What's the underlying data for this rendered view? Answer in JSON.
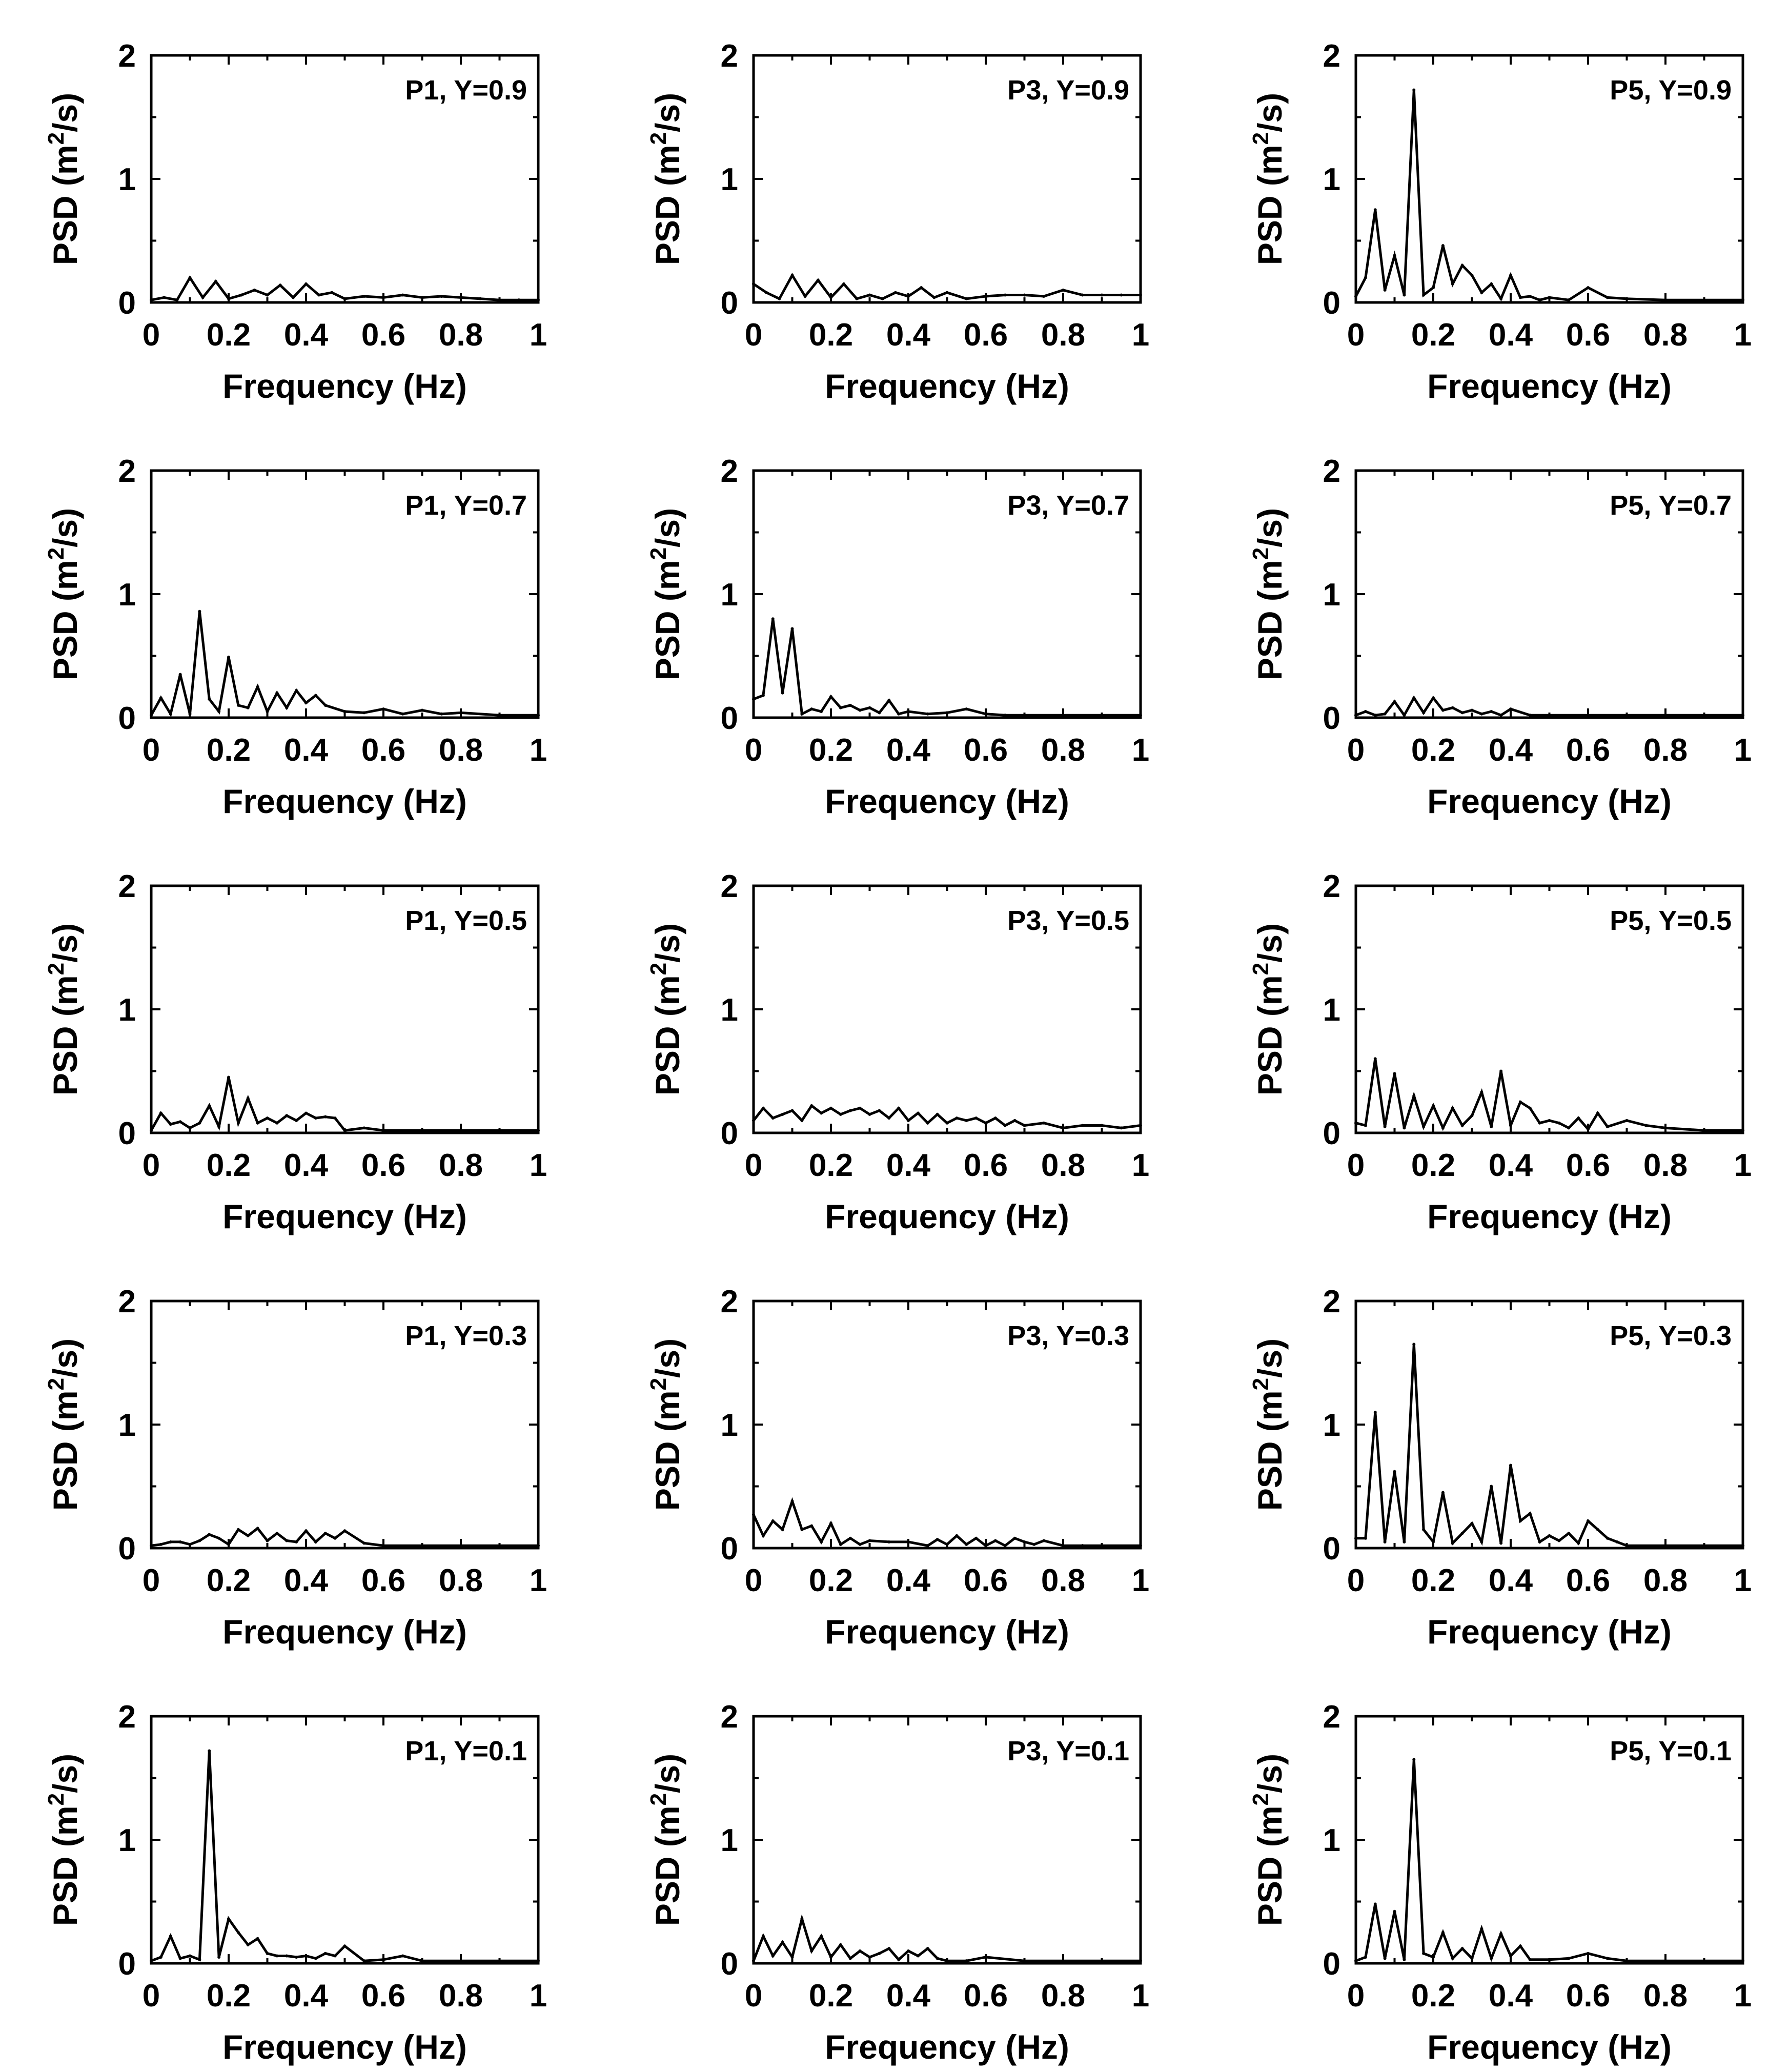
{
  "figure": {
    "xlabel": "Frequency (Hz)",
    "ylabel_main": "PSD (m",
    "ylabel_sup": "2",
    "ylabel_end": "/s)",
    "x_ticks": [
      "0",
      "0.2",
      "0.4",
      "0.6",
      "0.8",
      "1"
    ],
    "y_ticks": [
      "0",
      "1",
      "2"
    ]
  },
  "chart_data": [
    {
      "type": "line",
      "title": "P1, Y=0.9",
      "xlabel": "Frequency (Hz)",
      "ylabel": "PSD (m²/s)",
      "xlim": [
        0,
        1
      ],
      "ylim": [
        0,
        2
      ],
      "x": [
        0,
        0.0333,
        0.0667,
        0.1,
        0.1333,
        0.1667,
        0.2,
        0.2333,
        0.2667,
        0.3,
        0.3333,
        0.3667,
        0.4,
        0.4333,
        0.4667,
        0.5,
        0.55,
        0.6,
        0.65,
        0.7,
        0.75,
        0.8,
        0.85,
        0.9,
        0.95,
        1
      ],
      "values": [
        0.02,
        0.04,
        0.02,
        0.2,
        0.04,
        0.17,
        0.03,
        0.06,
        0.1,
        0.06,
        0.14,
        0.04,
        0.15,
        0.06,
        0.08,
        0.03,
        0.05,
        0.04,
        0.06,
        0.04,
        0.05,
        0.04,
        0.03,
        0.02,
        0.02,
        0.02
      ]
    },
    {
      "type": "line",
      "title": "P3, Y=0.9",
      "xlabel": "Frequency (Hz)",
      "ylabel": "PSD (m²/s)",
      "xlim": [
        0,
        1
      ],
      "ylim": [
        0,
        2
      ],
      "x": [
        0,
        0.0333,
        0.0667,
        0.1,
        0.1333,
        0.1667,
        0.2,
        0.2333,
        0.2667,
        0.3,
        0.3333,
        0.3667,
        0.4,
        0.4333,
        0.4667,
        0.5,
        0.55,
        0.6,
        0.65,
        0.7,
        0.75,
        0.8,
        0.85,
        0.9,
        0.95,
        1
      ],
      "values": [
        0.15,
        0.08,
        0.03,
        0.22,
        0.05,
        0.18,
        0.04,
        0.15,
        0.03,
        0.06,
        0.03,
        0.08,
        0.05,
        0.12,
        0.04,
        0.08,
        0.03,
        0.05,
        0.06,
        0.06,
        0.05,
        0.1,
        0.06,
        0.06,
        0.06,
        0.06
      ]
    },
    {
      "type": "line",
      "title": "P5, Y=0.9",
      "xlabel": "Frequency (Hz)",
      "ylabel": "PSD (m²/s)",
      "xlim": [
        0,
        1
      ],
      "ylim": [
        0,
        2
      ],
      "x": [
        0,
        0.025,
        0.05,
        0.075,
        0.1,
        0.125,
        0.15,
        0.175,
        0.2,
        0.225,
        0.25,
        0.275,
        0.3,
        0.325,
        0.35,
        0.375,
        0.4,
        0.425,
        0.45,
        0.475,
        0.5,
        0.55,
        0.6,
        0.65,
        0.7,
        0.8,
        0.9,
        1
      ],
      "values": [
        0.05,
        0.2,
        0.75,
        0.1,
        0.38,
        0.06,
        1.72,
        0.06,
        0.12,
        0.46,
        0.15,
        0.3,
        0.22,
        0.08,
        0.15,
        0.03,
        0.22,
        0.04,
        0.05,
        0.02,
        0.04,
        0.02,
        0.12,
        0.04,
        0.03,
        0.02,
        0.02,
        0.02
      ]
    },
    {
      "type": "line",
      "title": "P1, Y=0.7",
      "xlabel": "Frequency (Hz)",
      "ylabel": "PSD (m²/s)",
      "xlim": [
        0,
        1
      ],
      "ylim": [
        0,
        2
      ],
      "x": [
        0,
        0.025,
        0.05,
        0.075,
        0.1,
        0.125,
        0.15,
        0.175,
        0.2,
        0.225,
        0.25,
        0.275,
        0.3,
        0.325,
        0.35,
        0.375,
        0.4,
        0.425,
        0.45,
        0.5,
        0.55,
        0.6,
        0.65,
        0.7,
        0.75,
        0.8,
        0.9,
        1
      ],
      "values": [
        0.02,
        0.16,
        0.03,
        0.35,
        0.03,
        0.86,
        0.15,
        0.05,
        0.49,
        0.1,
        0.08,
        0.25,
        0.05,
        0.2,
        0.08,
        0.22,
        0.12,
        0.18,
        0.1,
        0.05,
        0.04,
        0.07,
        0.03,
        0.06,
        0.03,
        0.04,
        0.02,
        0.02
      ]
    },
    {
      "type": "line",
      "title": "P3, Y=0.7",
      "xlabel": "Frequency (Hz)",
      "ylabel": "PSD (m²/s)",
      "xlim": [
        0,
        1
      ],
      "ylim": [
        0,
        2
      ],
      "x": [
        0,
        0.025,
        0.05,
        0.075,
        0.1,
        0.125,
        0.15,
        0.175,
        0.2,
        0.225,
        0.25,
        0.275,
        0.3,
        0.325,
        0.35,
        0.375,
        0.4,
        0.45,
        0.5,
        0.55,
        0.6,
        0.65,
        0.7,
        0.8,
        0.9,
        1
      ],
      "values": [
        0.15,
        0.18,
        0.8,
        0.2,
        0.72,
        0.03,
        0.07,
        0.05,
        0.17,
        0.08,
        0.1,
        0.06,
        0.08,
        0.04,
        0.14,
        0.03,
        0.05,
        0.03,
        0.04,
        0.07,
        0.03,
        0.02,
        0.02,
        0.02,
        0.02,
        0.02
      ]
    },
    {
      "type": "line",
      "title": "P5, Y=0.7",
      "xlabel": "Frequency (Hz)",
      "ylabel": "PSD (m²/s)",
      "xlim": [
        0,
        1
      ],
      "ylim": [
        0,
        2
      ],
      "x": [
        0,
        0.025,
        0.05,
        0.075,
        0.1,
        0.125,
        0.15,
        0.175,
        0.2,
        0.225,
        0.25,
        0.275,
        0.3,
        0.325,
        0.35,
        0.375,
        0.4,
        0.45,
        0.5,
        0.6,
        0.7,
        0.8,
        0.9,
        1
      ],
      "values": [
        0.02,
        0.05,
        0.02,
        0.03,
        0.13,
        0.02,
        0.16,
        0.04,
        0.16,
        0.06,
        0.08,
        0.04,
        0.06,
        0.03,
        0.05,
        0.02,
        0.07,
        0.02,
        0.02,
        0.02,
        0.02,
        0.02,
        0.02,
        0.02
      ]
    },
    {
      "type": "line",
      "title": "P1, Y=0.5",
      "xlabel": "Frequency (Hz)",
      "ylabel": "PSD (m²/s)",
      "xlim": [
        0,
        1
      ],
      "ylim": [
        0,
        2
      ],
      "x": [
        0,
        0.025,
        0.05,
        0.075,
        0.1,
        0.125,
        0.15,
        0.175,
        0.2,
        0.225,
        0.25,
        0.275,
        0.3,
        0.325,
        0.35,
        0.375,
        0.4,
        0.425,
        0.45,
        0.475,
        0.5,
        0.55,
        0.6,
        0.7,
        0.8,
        0.9,
        1
      ],
      "values": [
        0.02,
        0.16,
        0.07,
        0.09,
        0.04,
        0.08,
        0.22,
        0.05,
        0.45,
        0.08,
        0.28,
        0.08,
        0.12,
        0.08,
        0.14,
        0.1,
        0.16,
        0.12,
        0.13,
        0.12,
        0.02,
        0.04,
        0.02,
        0.02,
        0.02,
        0.02,
        0.02
      ]
    },
    {
      "type": "line",
      "title": "P3, Y=0.5",
      "xlabel": "Frequency (Hz)",
      "ylabel": "PSD (m²/s)",
      "xlim": [
        0,
        1
      ],
      "ylim": [
        0,
        2
      ],
      "x": [
        0,
        0.025,
        0.05,
        0.075,
        0.1,
        0.125,
        0.15,
        0.175,
        0.2,
        0.225,
        0.25,
        0.275,
        0.3,
        0.325,
        0.35,
        0.375,
        0.4,
        0.425,
        0.45,
        0.475,
        0.5,
        0.525,
        0.55,
        0.575,
        0.6,
        0.625,
        0.65,
        0.675,
        0.7,
        0.75,
        0.8,
        0.85,
        0.9,
        0.95,
        1
      ],
      "values": [
        0.1,
        0.2,
        0.12,
        0.15,
        0.18,
        0.1,
        0.22,
        0.16,
        0.2,
        0.15,
        0.18,
        0.2,
        0.15,
        0.18,
        0.12,
        0.2,
        0.1,
        0.16,
        0.08,
        0.15,
        0.08,
        0.12,
        0.1,
        0.12,
        0.08,
        0.12,
        0.06,
        0.1,
        0.06,
        0.08,
        0.04,
        0.06,
        0.06,
        0.04,
        0.06
      ]
    },
    {
      "type": "line",
      "title": "P5, Y=0.5",
      "xlabel": "Frequency (Hz)",
      "ylabel": "PSD (m²/s)",
      "xlim": [
        0,
        1
      ],
      "ylim": [
        0,
        2
      ],
      "x": [
        0,
        0.025,
        0.05,
        0.075,
        0.1,
        0.125,
        0.15,
        0.175,
        0.2,
        0.225,
        0.25,
        0.275,
        0.3,
        0.325,
        0.35,
        0.375,
        0.4,
        0.425,
        0.45,
        0.475,
        0.5,
        0.525,
        0.55,
        0.575,
        0.6,
        0.625,
        0.65,
        0.7,
        0.75,
        0.8,
        0.9,
        1
      ],
      "values": [
        0.08,
        0.06,
        0.6,
        0.05,
        0.48,
        0.04,
        0.3,
        0.05,
        0.22,
        0.04,
        0.2,
        0.06,
        0.14,
        0.33,
        0.05,
        0.5,
        0.06,
        0.25,
        0.2,
        0.08,
        0.1,
        0.08,
        0.04,
        0.12,
        0.03,
        0.16,
        0.05,
        0.1,
        0.06,
        0.04,
        0.02,
        0.02
      ]
    },
    {
      "type": "line",
      "title": "P1, Y=0.3",
      "xlabel": "Frequency (Hz)",
      "ylabel": "PSD (m²/s)",
      "xlim": [
        0,
        1
      ],
      "ylim": [
        0,
        2
      ],
      "x": [
        0,
        0.025,
        0.05,
        0.075,
        0.1,
        0.125,
        0.15,
        0.175,
        0.2,
        0.225,
        0.25,
        0.275,
        0.3,
        0.325,
        0.35,
        0.375,
        0.4,
        0.425,
        0.45,
        0.475,
        0.5,
        0.55,
        0.6,
        0.7,
        0.8,
        0.9,
        1
      ],
      "values": [
        0.02,
        0.03,
        0.05,
        0.05,
        0.03,
        0.06,
        0.11,
        0.08,
        0.03,
        0.15,
        0.1,
        0.16,
        0.06,
        0.12,
        0.06,
        0.05,
        0.14,
        0.05,
        0.12,
        0.08,
        0.14,
        0.04,
        0.02,
        0.02,
        0.02,
        0.02,
        0.02
      ]
    },
    {
      "type": "line",
      "title": "P3, Y=0.3",
      "xlabel": "Frequency (Hz)",
      "ylabel": "PSD (m²/s)",
      "xlim": [
        0,
        1
      ],
      "ylim": [
        0,
        2
      ],
      "x": [
        0,
        0.025,
        0.05,
        0.075,
        0.1,
        0.125,
        0.15,
        0.175,
        0.2,
        0.225,
        0.25,
        0.275,
        0.3,
        0.35,
        0.4,
        0.45,
        0.475,
        0.5,
        0.525,
        0.55,
        0.575,
        0.6,
        0.625,
        0.65,
        0.675,
        0.7,
        0.725,
        0.75,
        0.8,
        0.85,
        0.9,
        1
      ],
      "values": [
        0.27,
        0.1,
        0.22,
        0.15,
        0.38,
        0.15,
        0.18,
        0.05,
        0.2,
        0.03,
        0.08,
        0.03,
        0.06,
        0.05,
        0.05,
        0.02,
        0.07,
        0.03,
        0.1,
        0.03,
        0.08,
        0.02,
        0.06,
        0.02,
        0.08,
        0.05,
        0.03,
        0.06,
        0.02,
        0.02,
        0.02,
        0.02
      ]
    },
    {
      "type": "line",
      "title": "P5, Y=0.3",
      "xlabel": "Frequency (Hz)",
      "ylabel": "PSD (m²/s)",
      "xlim": [
        0,
        1
      ],
      "ylim": [
        0,
        2
      ],
      "x": [
        0,
        0.025,
        0.05,
        0.075,
        0.1,
        0.125,
        0.15,
        0.175,
        0.2,
        0.225,
        0.25,
        0.275,
        0.3,
        0.325,
        0.35,
        0.375,
        0.4,
        0.425,
        0.45,
        0.475,
        0.5,
        0.525,
        0.55,
        0.575,
        0.6,
        0.625,
        0.65,
        0.675,
        0.7,
        0.8,
        0.9,
        1
      ],
      "values": [
        0.08,
        0.08,
        1.1,
        0.05,
        0.62,
        0.05,
        1.65,
        0.15,
        0.05,
        0.45,
        0.04,
        0.12,
        0.2,
        0.05,
        0.5,
        0.04,
        0.67,
        0.22,
        0.28,
        0.05,
        0.1,
        0.06,
        0.12,
        0.04,
        0.22,
        0.15,
        0.08,
        0.05,
        0.02,
        0.02,
        0.02,
        0.02
      ]
    },
    {
      "type": "line",
      "title": "P1, Y=0.1",
      "xlabel": "Frequency (Hz)",
      "ylabel": "PSD (m²/s)",
      "xlim": [
        0,
        1
      ],
      "ylim": [
        0,
        2
      ],
      "x": [
        0,
        0.025,
        0.05,
        0.075,
        0.1,
        0.125,
        0.15,
        0.175,
        0.2,
        0.225,
        0.25,
        0.275,
        0.3,
        0.325,
        0.35,
        0.375,
        0.4,
        0.425,
        0.45,
        0.475,
        0.5,
        0.55,
        0.6,
        0.65,
        0.7,
        0.8,
        0.9,
        1
      ],
      "values": [
        0.02,
        0.05,
        0.22,
        0.04,
        0.06,
        0.03,
        1.72,
        0.05,
        0.36,
        0.25,
        0.15,
        0.2,
        0.08,
        0.06,
        0.06,
        0.05,
        0.06,
        0.04,
        0.08,
        0.06,
        0.14,
        0.02,
        0.03,
        0.06,
        0.02,
        0.02,
        0.02,
        0.02
      ]
    },
    {
      "type": "line",
      "title": "P3, Y=0.1",
      "xlabel": "Frequency (Hz)",
      "ylabel": "PSD (m²/s)",
      "xlim": [
        0,
        1
      ],
      "ylim": [
        0,
        2
      ],
      "x": [
        0,
        0.025,
        0.05,
        0.075,
        0.1,
        0.125,
        0.15,
        0.175,
        0.2,
        0.225,
        0.25,
        0.275,
        0.3,
        0.325,
        0.35,
        0.375,
        0.4,
        0.425,
        0.45,
        0.475,
        0.5,
        0.55,
        0.6,
        0.7,
        0.8,
        0.9,
        1
      ],
      "values": [
        0.02,
        0.22,
        0.06,
        0.17,
        0.05,
        0.36,
        0.1,
        0.22,
        0.05,
        0.15,
        0.04,
        0.1,
        0.05,
        0.08,
        0.12,
        0.03,
        0.1,
        0.06,
        0.12,
        0.04,
        0.02,
        0.02,
        0.05,
        0.02,
        0.02,
        0.02,
        0.02
      ]
    },
    {
      "type": "line",
      "title": "P5, Y=0.1",
      "xlabel": "Frequency (Hz)",
      "ylabel": "PSD (m²/s)",
      "xlim": [
        0,
        1
      ],
      "ylim": [
        0,
        2
      ],
      "x": [
        0,
        0.025,
        0.05,
        0.075,
        0.1,
        0.125,
        0.15,
        0.175,
        0.2,
        0.225,
        0.25,
        0.275,
        0.3,
        0.325,
        0.35,
        0.375,
        0.4,
        0.425,
        0.45,
        0.5,
        0.55,
        0.6,
        0.65,
        0.7,
        0.8,
        0.9,
        1
      ],
      "values": [
        0.02,
        0.05,
        0.48,
        0.04,
        0.42,
        0.03,
        1.65,
        0.08,
        0.05,
        0.25,
        0.04,
        0.12,
        0.04,
        0.28,
        0.04,
        0.24,
        0.06,
        0.14,
        0.03,
        0.03,
        0.04,
        0.08,
        0.04,
        0.02,
        0.02,
        0.02,
        0.02
      ]
    }
  ]
}
